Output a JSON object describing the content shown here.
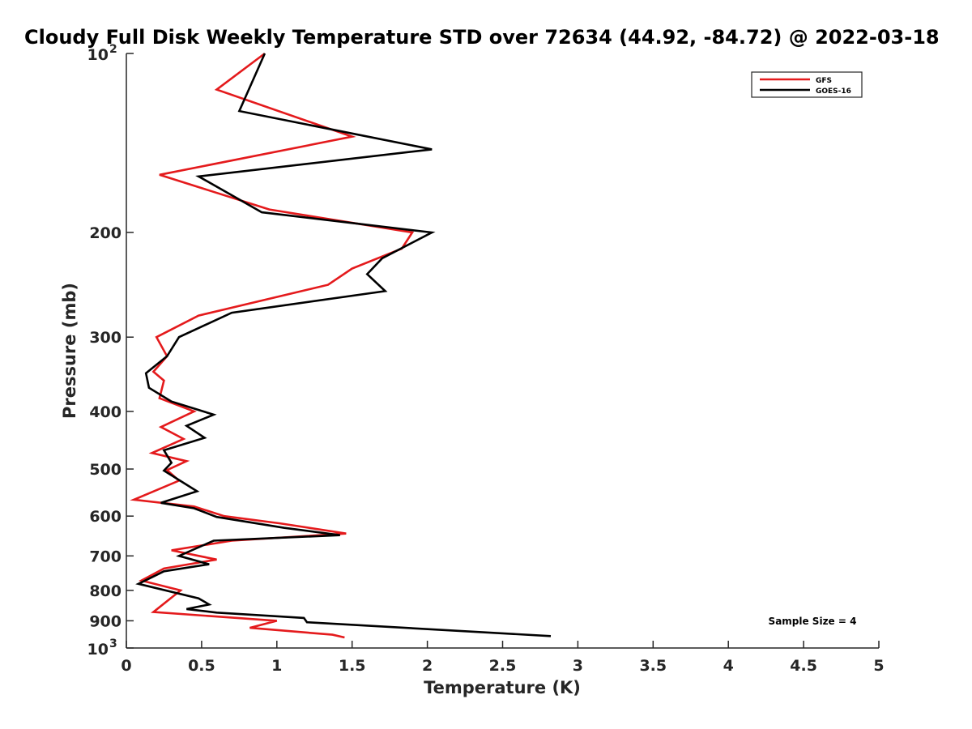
{
  "chart_data": {
    "type": "line",
    "title": "Cloudy Full Disk Weekly Temperature STD over 72634 (44.92, -84.72) @ 2022-03-18",
    "xlabel": "Temperature (K)",
    "ylabel": "Pressure (mb)",
    "xlim": [
      0,
      5
    ],
    "ylim": [
      100,
      1000
    ],
    "y_scale": "log",
    "y_reversed": true,
    "grid": false,
    "legend_position": "top-right",
    "x_ticks": [
      {
        "value": 0,
        "label": "0"
      },
      {
        "value": 0.5,
        "label": "0.5"
      },
      {
        "value": 1,
        "label": "1"
      },
      {
        "value": 1.5,
        "label": "1.5"
      },
      {
        "value": 2,
        "label": "2"
      },
      {
        "value": 2.5,
        "label": "2.5"
      },
      {
        "value": 3,
        "label": "3"
      },
      {
        "value": 3.5,
        "label": "3.5"
      },
      {
        "value": 4,
        "label": "4"
      },
      {
        "value": 4.5,
        "label": "4.5"
      },
      {
        "value": 5,
        "label": "5"
      }
    ],
    "y_ticks": [
      {
        "value": 100,
        "label": "10",
        "exponent": "2"
      },
      {
        "value": 200,
        "label": "200"
      },
      {
        "value": 300,
        "label": "300"
      },
      {
        "value": 400,
        "label": "400"
      },
      {
        "value": 500,
        "label": "500"
      },
      {
        "value": 600,
        "label": "600"
      },
      {
        "value": 700,
        "label": "700"
      },
      {
        "value": 800,
        "label": "800"
      },
      {
        "value": 900,
        "label": "900"
      },
      {
        "value": 1000,
        "label": "10",
        "exponent": "3"
      }
    ],
    "series": [
      {
        "name": "GFS",
        "color": "#e41a1c",
        "points": [
          [
            0.92,
            100
          ],
          [
            0.6,
            115
          ],
          [
            1.5,
            138
          ],
          [
            0.22,
            160
          ],
          [
            0.95,
            183
          ],
          [
            1.9,
            200
          ],
          [
            1.83,
            213
          ],
          [
            1.5,
            230
          ],
          [
            1.34,
            245
          ],
          [
            0.48,
            276
          ],
          [
            0.2,
            300
          ],
          [
            0.27,
            323
          ],
          [
            0.18,
            343
          ],
          [
            0.25,
            355
          ],
          [
            0.22,
            380
          ],
          [
            0.45,
            400
          ],
          [
            0.23,
            425
          ],
          [
            0.38,
            445
          ],
          [
            0.17,
            470
          ],
          [
            0.4,
            485
          ],
          [
            0.27,
            502
          ],
          [
            0.35,
            523
          ],
          [
            0.05,
            563
          ],
          [
            0.45,
            578
          ],
          [
            0.65,
            600
          ],
          [
            1.02,
            617
          ],
          [
            1.46,
            642
          ],
          [
            0.7,
            660
          ],
          [
            0.3,
            685
          ],
          [
            0.6,
            710
          ],
          [
            0.25,
            735
          ],
          [
            0.1,
            770
          ],
          [
            0.36,
            800
          ],
          [
            0.18,
            870
          ],
          [
            1.0,
            900
          ],
          [
            0.82,
            925
          ],
          [
            1.37,
            950
          ],
          [
            1.45,
            960
          ]
        ]
      },
      {
        "name": "GOES-16",
        "color": "#000000",
        "points": [
          [
            0.92,
            100
          ],
          [
            0.75,
            125
          ],
          [
            2.03,
            145
          ],
          [
            0.48,
            161
          ],
          [
            0.9,
            185
          ],
          [
            2.03,
            200
          ],
          [
            1.7,
            221
          ],
          [
            1.6,
            235
          ],
          [
            1.72,
            251
          ],
          [
            0.7,
            273
          ],
          [
            0.35,
            300
          ],
          [
            0.27,
            323
          ],
          [
            0.13,
            345
          ],
          [
            0.15,
            365
          ],
          [
            0.3,
            385
          ],
          [
            0.58,
            405
          ],
          [
            0.4,
            423
          ],
          [
            0.52,
            443
          ],
          [
            0.25,
            465
          ],
          [
            0.3,
            488
          ],
          [
            0.25,
            503
          ],
          [
            0.47,
            545
          ],
          [
            0.23,
            570
          ],
          [
            0.45,
            582
          ],
          [
            0.6,
            602
          ],
          [
            1.05,
            628
          ],
          [
            1.42,
            646
          ],
          [
            0.58,
            660
          ],
          [
            0.35,
            700
          ],
          [
            0.55,
            723
          ],
          [
            0.25,
            743
          ],
          [
            0.08,
            780
          ],
          [
            0.48,
            825
          ],
          [
            0.55,
            845
          ],
          [
            0.4,
            860
          ],
          [
            0.6,
            872
          ],
          [
            1.18,
            890
          ],
          [
            1.2,
            905
          ],
          [
            2.82,
            955
          ]
        ]
      }
    ],
    "annotation": "Sample Size = 4"
  }
}
